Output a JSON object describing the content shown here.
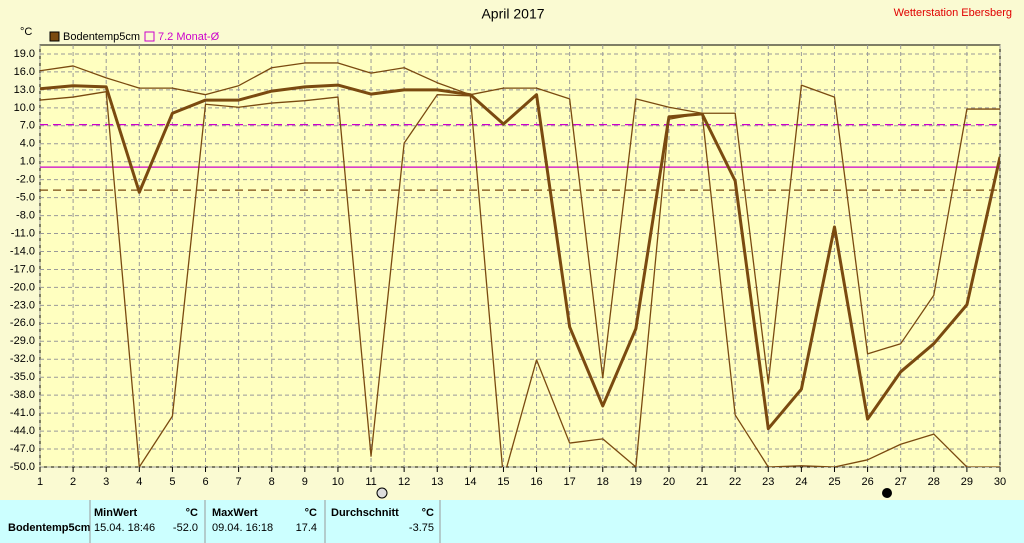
{
  "chart_data": {
    "type": "line",
    "title": "April 2017",
    "station": "Wetterstation Ebersberg",
    "y_unit": "°C",
    "x": [
      1,
      2,
      3,
      4,
      5,
      6,
      7,
      8,
      9,
      10,
      11,
      12,
      13,
      14,
      15,
      16,
      17,
      18,
      19,
      20,
      21,
      22,
      23,
      24,
      25,
      26,
      27,
      28,
      29,
      30
    ],
    "series": [
      {
        "color": "#7a4a10",
        "width": 1.3,
        "values": [
          16.2,
          17,
          15,
          13.3,
          13.3,
          12.2,
          13.7,
          16.7,
          17.5,
          17.5,
          15.8,
          16.7,
          14.2,
          12.2,
          13.3,
          13.3,
          11.5,
          -35.1,
          11.5,
          10.1,
          9.1,
          9.1,
          -36,
          13.8,
          11.8,
          -31.1,
          -29.4,
          -21.3,
          9.8,
          9.8
        ]
      },
      {
        "name": "Bodentemp5cm",
        "color": "#7a4a10",
        "width": 3,
        "values": [
          13.2,
          13.7,
          13.5,
          -4.1,
          9.1,
          11.3,
          11.3,
          12.8,
          13.5,
          13.8,
          12.3,
          13,
          13,
          12.2,
          7.3,
          12.2,
          -26.6,
          -39.8,
          -26.9,
          8.5,
          9,
          -2.2,
          -43.6,
          -37,
          -9.9,
          -42,
          -34.1,
          -29.4,
          -22.9,
          1.8
        ]
      },
      {
        "color": "#7a4a10",
        "width": 1.3,
        "values": [
          11.3,
          11.8,
          12.7,
          -50,
          -41.5,
          10.6,
          10.1,
          10.8,
          11.2,
          11.8,
          -48.2,
          4.1,
          12.2,
          12,
          -52,
          -32.1,
          -46,
          -45.3,
          -50,
          8.1,
          9.1,
          -41.3,
          -50,
          -49.8,
          -50,
          -48.8,
          -46.2,
          -44.5,
          -50,
          -50
        ]
      }
    ],
    "hlines": [
      {
        "name": "7.2 Monat-Ø",
        "value": 7.2,
        "color": "#cc00cc",
        "dash": true
      },
      {
        "value": 0.1,
        "color": "#cc00cc",
        "dash": false
      },
      {
        "value": -3.75,
        "color": "#7a4a10",
        "dash": true
      }
    ],
    "xlim": [
      1,
      30
    ],
    "xticks": [
      1,
      2,
      3,
      4,
      5,
      6,
      7,
      8,
      9,
      10,
      11,
      12,
      13,
      14,
      15,
      16,
      17,
      18,
      19,
      20,
      21,
      22,
      23,
      24,
      25,
      26,
      27,
      28,
      29,
      30
    ],
    "ylim": [
      -50,
      20.5
    ],
    "yticks": [
      {
        "value": 19,
        "label": "19.0"
      },
      {
        "value": 16,
        "label": "16.0"
      },
      {
        "value": 13,
        "label": "13.0"
      },
      {
        "value": 10,
        "label": "10.0"
      },
      {
        "value": 7,
        "label": "7.0"
      },
      {
        "value": 4,
        "label": "4.0"
      },
      {
        "value": 1,
        "label": "1.0"
      },
      {
        "value": -2,
        "label": "-2.0"
      },
      {
        "value": -5,
        "label": "-5.0"
      },
      {
        "value": -8,
        "label": "-8.0"
      },
      {
        "value": -11,
        "label": "-11.0"
      },
      {
        "value": -14,
        "label": "-14.0"
      },
      {
        "value": -17,
        "label": "-17.0"
      },
      {
        "value": -20,
        "label": "-20.0"
      },
      {
        "value": -23,
        "label": "-23.0"
      },
      {
        "value": -26,
        "label": "-26.0"
      },
      {
        "value": -29,
        "label": "-29.0"
      },
      {
        "value": -32,
        "label": "-32.0"
      },
      {
        "value": -35,
        "label": "-35.0"
      },
      {
        "value": -38,
        "label": "-38.0"
      },
      {
        "value": -41,
        "label": "-41.0"
      },
      {
        "value": -44,
        "label": "-44.0"
      },
      {
        "value": -47,
        "label": "-47.0"
      },
      {
        "value": -50,
        "label": "-50.0"
      }
    ],
    "grid": true
  },
  "stats_table": {
    "headers": [
      "MinWert",
      "°C",
      "MaxWert",
      "°C",
      "Durchschnitt",
      "°C"
    ],
    "rows": [
      [
        "Bodentemp5cm",
        "15.04. 18:46",
        "-52.0",
        "09.04. 16:18",
        "17.4",
        "-3.75"
      ]
    ]
  }
}
